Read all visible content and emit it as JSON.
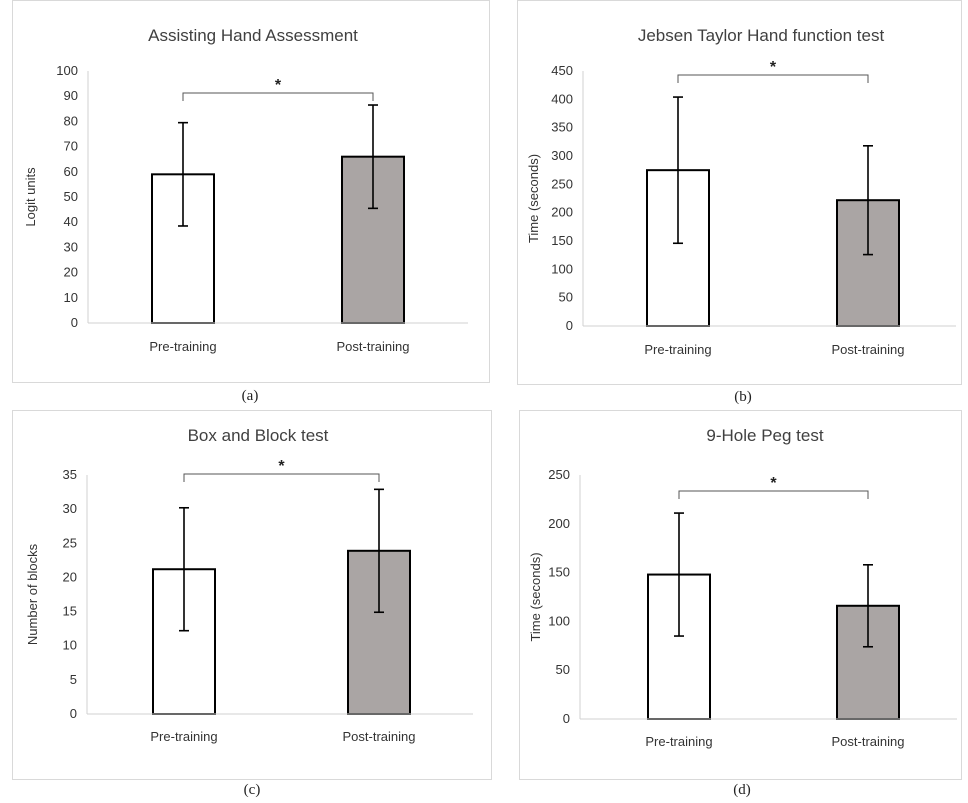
{
  "chart_data": [
    {
      "type": "bar",
      "title": "Assisting Hand Assessment",
      "ylabel": "Logit units",
      "xlabel": "",
      "categories": [
        "Pre-training",
        "Post-training"
      ],
      "values": [
        59,
        66
      ],
      "error": [
        20.5,
        20.5
      ],
      "bar_colors": [
        "#ffffff",
        "#aaa5a4"
      ],
      "ylim": [
        0,
        100
      ],
      "yticks": [
        0,
        10,
        20,
        30,
        40,
        50,
        60,
        70,
        80,
        90,
        100
      ],
      "significance": "*",
      "grid": false,
      "caption": "(a)"
    },
    {
      "type": "bar",
      "title": "Jebsen Taylor Hand function test",
      "ylabel": "Time (seconds)",
      "xlabel": "",
      "categories": [
        "Pre-training",
        "Post-training"
      ],
      "values": [
        275,
        222
      ],
      "error": [
        129,
        96
      ],
      "bar_colors": [
        "#ffffff",
        "#aaa5a4"
      ],
      "ylim": [
        0,
        450
      ],
      "yticks": [
        0,
        50,
        100,
        150,
        200,
        250,
        300,
        350,
        400,
        450
      ],
      "significance": "*",
      "grid": false,
      "caption": "(b)"
    },
    {
      "type": "bar",
      "title": "Box and Block test",
      "ylabel": "Number of blocks",
      "xlabel": "",
      "categories": [
        "Pre-training",
        "Post-training"
      ],
      "values": [
        21.2,
        23.9
      ],
      "error": [
        9,
        9
      ],
      "bar_colors": [
        "#ffffff",
        "#aaa5a4"
      ],
      "ylim": [
        0,
        35
      ],
      "yticks": [
        0,
        5,
        10,
        15,
        20,
        25,
        30,
        35
      ],
      "significance": "*",
      "grid": false,
      "caption": "(c)"
    },
    {
      "type": "bar",
      "title": "9-Hole Peg test",
      "ylabel": "Time (seconds)",
      "xlabel": "",
      "categories": [
        "Pre-training",
        "Post-training"
      ],
      "values": [
        148,
        116
      ],
      "error": [
        63,
        42
      ],
      "bar_colors": [
        "#ffffff",
        "#aaa5a4"
      ],
      "ylim": [
        0,
        250
      ],
      "yticks": [
        0,
        50,
        100,
        150,
        200,
        250
      ],
      "significance": "*",
      "grid": false,
      "caption": "(d)"
    }
  ]
}
